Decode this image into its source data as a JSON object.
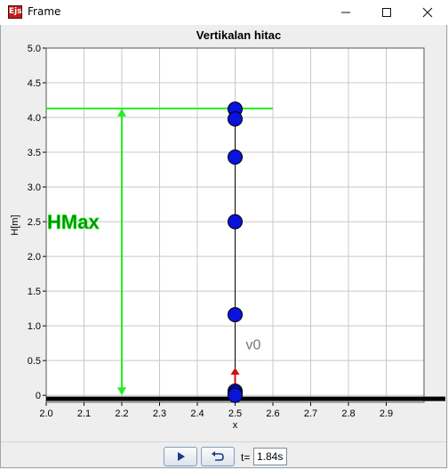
{
  "window": {
    "title": "Frame",
    "icon_text": "Ejs",
    "buttons": [
      "minimize-icon",
      "maximize-icon",
      "close-icon"
    ]
  },
  "chart_data": {
    "type": "scatter",
    "title": "Vertikalan hitac",
    "xlabel": "x",
    "ylabel": "H[m]",
    "xlim": [
      2.0,
      3.0
    ],
    "ylim": [
      -0.1,
      5.0
    ],
    "x_ticks": [
      "2.0",
      "2.1",
      "2.2",
      "2.3",
      "2.4",
      "2.5",
      "2.6",
      "2.7",
      "2.8",
      "2.9"
    ],
    "y_ticks": [
      "0",
      "0.5",
      "1.0",
      "1.5",
      "2.0",
      "2.5",
      "3.0",
      "3.5",
      "4.0",
      "4.5",
      "5.0"
    ],
    "grid": true,
    "points": [
      {
        "x": 2.5,
        "y": 4.12
      },
      {
        "x": 2.5,
        "y": 3.98
      },
      {
        "x": 2.5,
        "y": 3.43
      },
      {
        "x": 2.5,
        "y": 2.5
      },
      {
        "x": 2.5,
        "y": 1.16
      },
      {
        "x": 2.5,
        "y": 0.06
      },
      {
        "x": 2.5,
        "y": 0.03
      },
      {
        "x": 2.5,
        "y": 0.0
      }
    ],
    "ground_y": -0.05,
    "hmax_value": 4.13,
    "hmax_line_x": [
      2.0,
      2.6
    ],
    "hmax_arrow_x": 2.2,
    "hmax_label": "HMax",
    "velocity_vector": {
      "x": 2.5,
      "y0": 0.0,
      "y1": 0.4
    },
    "velocity_label": "v0",
    "colors": {
      "points": "#0a12dc",
      "hmax": "#22ee22",
      "hmax_text": "#0a8a0a",
      "vector": "#cc1111",
      "ground": "#000000",
      "grid": "#c8c8c8",
      "plot_bg": "#ffffff"
    }
  },
  "controls": {
    "play_icon": "play-icon",
    "reset_icon": "reset-icon",
    "time_label": "t=",
    "time_value": "1.84s"
  }
}
